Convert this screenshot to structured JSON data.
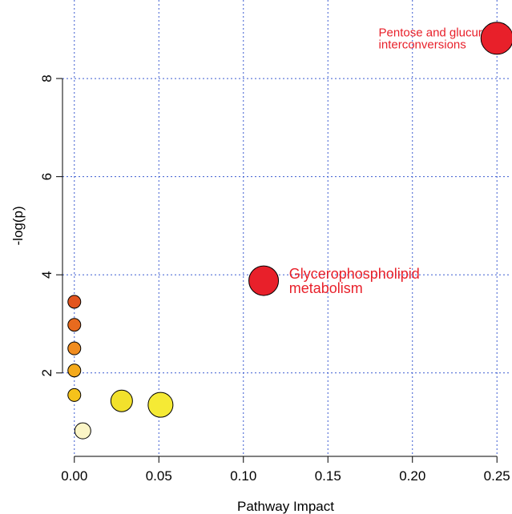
{
  "chart_data": {
    "type": "scatter",
    "title": "",
    "xlabel": "Pathway Impact",
    "ylabel": "-log(p)",
    "xlim": [
      -0.007,
      0.257
    ],
    "ylim": [
      0.3,
      9.6
    ],
    "x_ticks": [
      "0.00",
      "0.05",
      "0.10",
      "0.15",
      "0.20",
      "0.25"
    ],
    "x_tick_values": [
      0.0,
      0.05,
      0.1,
      0.15,
      0.2,
      0.25
    ],
    "y_ticks": [
      "2",
      "4",
      "6",
      "8"
    ],
    "y_tick_values": [
      2,
      4,
      6,
      8
    ],
    "grid": true,
    "grid_color": "#3b5bd0",
    "points": [
      {
        "x": 0.25,
        "y": 8.82,
        "size": 2.0,
        "color": "#e8202a",
        "label": "Pentose and glucuronate\ninterconversions"
      },
      {
        "x": 0.112,
        "y": 3.88,
        "size": 1.85,
        "color": "#e8202a",
        "label": "Glycerophospholipid\nmetabolism"
      },
      {
        "x": 0.0,
        "y": 3.45,
        "size": 0.8,
        "color": "#e2541f"
      },
      {
        "x": 0.0,
        "y": 2.98,
        "size": 0.8,
        "color": "#e86a1e"
      },
      {
        "x": 0.0,
        "y": 2.5,
        "size": 0.8,
        "color": "#f08c20"
      },
      {
        "x": 0.0,
        "y": 2.05,
        "size": 0.8,
        "color": "#f4aa1c"
      },
      {
        "x": 0.0,
        "y": 1.55,
        "size": 0.8,
        "color": "#f5c21b"
      },
      {
        "x": 0.028,
        "y": 1.43,
        "size": 1.35,
        "color": "#f2e12c"
      },
      {
        "x": 0.051,
        "y": 1.35,
        "size": 1.55,
        "color": "#f5ea35"
      },
      {
        "x": 0.005,
        "y": 0.82,
        "size": 1.0,
        "color": "#fbf5c6"
      }
    ],
    "annotations": [
      {
        "lines": [
          "Pentose and glucuronate",
          "interconversions"
        ],
        "x": 0.18,
        "y": 8.82
      },
      {
        "lines": [
          "Glycerophospholipid",
          "metabolism"
        ],
        "x": 0.127,
        "y": 3.88
      }
    ]
  }
}
